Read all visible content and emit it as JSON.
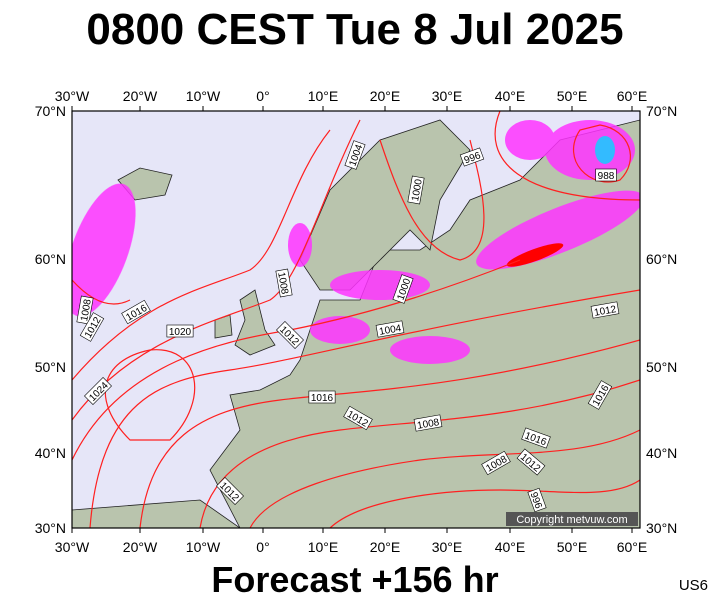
{
  "header": {
    "title": "0800 CEST Tue 8 Jul 2025"
  },
  "map": {
    "longitude_labels": [
      "30°W",
      "20°W",
      "10°W",
      "0°",
      "10°E",
      "20°E",
      "30°E",
      "40°E",
      "50°E",
      "60°E"
    ],
    "latitude_labels": [
      "70°N",
      "60°N",
      "50°N",
      "40°N",
      "30°N"
    ],
    "isobar_labels": [
      1004,
      996,
      1000,
      988,
      1008,
      1000,
      1008,
      1012,
      1016,
      1020,
      1012,
      1004,
      1012,
      1016,
      1012,
      1008,
      1024,
      1016,
      1016,
      1008,
      1012,
      996,
      1012
    ],
    "copyright": "Copyright metvuw.com"
  },
  "footer": {
    "forecast": "Forecast +156 hr",
    "code": "US6"
  }
}
